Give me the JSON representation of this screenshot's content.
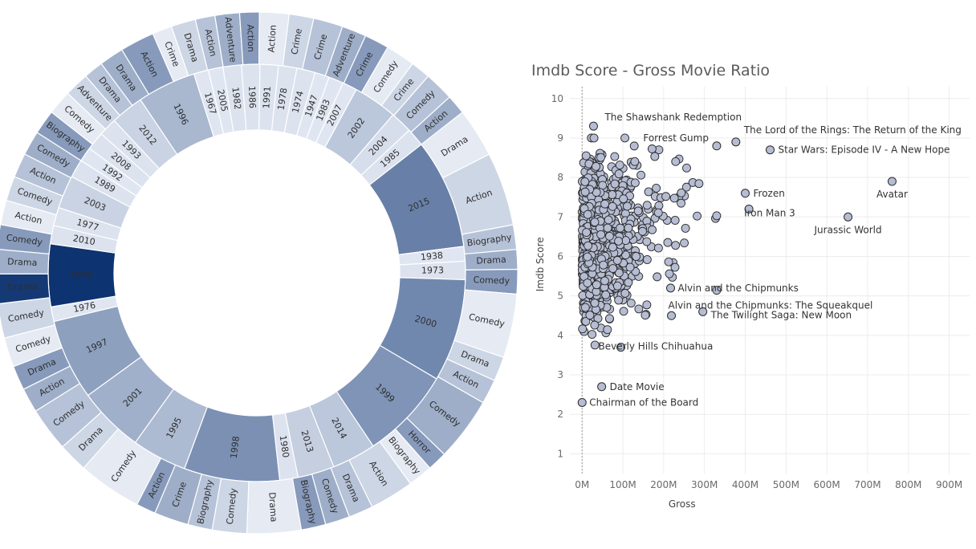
{
  "chart_data": [
    {
      "type": "sunburst",
      "inner_ring": [
        {
          "label": "2015",
          "span": 30
        },
        {
          "label": "1938",
          "span": 4
        },
        {
          "label": "1973",
          "span": 5
        },
        {
          "label": "2000",
          "span": 28
        },
        {
          "label": "1999",
          "span": 25
        },
        {
          "label": "2014",
          "span": 12
        },
        {
          "label": "2013",
          "span": 10
        },
        {
          "label": "1980",
          "span": 5
        },
        {
          "label": "1998",
          "span": 26
        },
        {
          "label": "1995",
          "span": 15
        },
        {
          "label": "2001",
          "span": 18
        },
        {
          "label": "1997",
          "span": 22
        },
        {
          "label": "1976",
          "span": 4
        },
        {
          "label": "1994",
          "span": 17
        },
        {
          "label": "2010",
          "span": 5
        },
        {
          "label": "1977",
          "span": 5
        },
        {
          "label": "2003",
          "span": 9
        },
        {
          "label": "1989",
          "span": 5
        },
        {
          "label": "1992",
          "span": 4
        },
        {
          "label": "2008",
          "span": 5
        },
        {
          "label": "1993",
          "span": 5
        },
        {
          "label": "2012",
          "span": 9
        },
        {
          "label": "1996",
          "span": 16
        },
        {
          "label": "1967",
          "span": 4
        },
        {
          "label": "2005",
          "span": 4
        },
        {
          "label": "1982",
          "span": 5
        },
        {
          "label": "1986",
          "span": 5
        },
        {
          "label": "1991",
          "span": 5
        },
        {
          "label": "1978",
          "span": 5
        },
        {
          "label": "1974",
          "span": 5
        },
        {
          "label": "1947",
          "span": 4
        },
        {
          "label": "1983",
          "span": 4
        },
        {
          "label": "2007",
          "span": 4
        },
        {
          "label": "2002",
          "span": 12
        },
        {
          "label": "2004",
          "span": 6
        },
        {
          "label": "1985",
          "span": 5
        }
      ],
      "outer_ring": [
        {
          "label": "Drama",
          "span": 10
        },
        {
          "label": "Action",
          "span": 15
        },
        {
          "label": "Biography",
          "span": 5
        },
        {
          "label": "Drama",
          "span": 4
        },
        {
          "label": "Comedy",
          "span": 5
        },
        {
          "label": "Comedy",
          "span": 13
        },
        {
          "label": "Drama",
          "span": 5
        },
        {
          "label": "Action",
          "span": 5
        },
        {
          "label": "Comedy",
          "span": 13
        },
        {
          "label": "Horror",
          "span": 4
        },
        {
          "label": "Biography",
          "span": 5
        },
        {
          "label": "Action",
          "span": 9
        },
        {
          "label": "Drama",
          "span": 5
        },
        {
          "label": "Comedy",
          "span": 5
        },
        {
          "label": "Biography",
          "span": 5
        },
        {
          "label": "Drama",
          "span": 11
        },
        {
          "label": "Comedy",
          "span": 7
        },
        {
          "label": "Biography",
          "span": 5
        },
        {
          "label": "Crime",
          "span": 7
        },
        {
          "label": "Action",
          "span": 4
        },
        {
          "label": "Comedy",
          "span": 13
        },
        {
          "label": "Drama",
          "span": 6
        },
        {
          "label": "Comedy",
          "span": 9
        },
        {
          "label": "Action",
          "span": 5
        },
        {
          "label": "Drama",
          "span": 5
        },
        {
          "label": "Comedy",
          "span": 6
        },
        {
          "label": "Comedy",
          "span": 7
        },
        {
          "label": "Drama",
          "span": 6
        },
        {
          "label": "Drama",
          "span": 5
        },
        {
          "label": "Comedy",
          "span": 5
        },
        {
          "label": "Action",
          "span": 5
        },
        {
          "label": "Comedy",
          "span": 5
        },
        {
          "label": "Action",
          "span": 5
        },
        {
          "label": "Comedy",
          "span": 5
        },
        {
          "label": "Biography",
          "span": 5
        },
        {
          "label": "Comedy",
          "span": 5
        },
        {
          "label": "Adventure",
          "span": 5
        },
        {
          "label": "Drama",
          "span": 4
        },
        {
          "label": "Drama",
          "span": 5
        },
        {
          "label": "Action",
          "span": 7
        },
        {
          "label": "Crime",
          "span": 4
        },
        {
          "label": "Drama",
          "span": 5
        },
        {
          "label": "Action",
          "span": 4
        },
        {
          "label": "Adventure",
          "span": 5
        },
        {
          "label": "Action",
          "span": 4
        },
        {
          "label": "Action",
          "span": 6
        },
        {
          "label": "Crime",
          "span": 5
        },
        {
          "label": "Crime",
          "span": 6
        },
        {
          "label": "Adventure",
          "span": 5
        },
        {
          "label": "Crime",
          "span": 5
        },
        {
          "label": "Comedy",
          "span": 6
        },
        {
          "label": "Crime",
          "span": 4
        },
        {
          "label": "Comedy",
          "span": 6
        },
        {
          "label": "Action",
          "span": 4
        }
      ],
      "colors": {
        "light": "#f3f6fc",
        "dark": "#082f6e",
        "stroke": "#ffffff"
      }
    },
    {
      "type": "scatter",
      "title": "Imdb Score - Gross Movie Ratio",
      "xlabel": "Gross",
      "ylabel": "Imdb Score",
      "xlim": [
        -30,
        950
      ],
      "ylim": [
        0.5,
        10.3
      ],
      "x_ticks": [
        "0M",
        "100M",
        "200M",
        "300M",
        "400M",
        "500M",
        "600M",
        "700M",
        "800M",
        "900M"
      ],
      "y_ticks": [
        "1",
        "2",
        "3",
        "4",
        "5",
        "6",
        "7",
        "8",
        "9",
        "10"
      ],
      "grid": true,
      "colors": {
        "point_fill": "#b6bdd3",
        "point_stroke": "#2b2b2b"
      },
      "labeled_points": [
        {
          "name": "The Shawshank Redemption",
          "x": 28,
          "y": 9.3
        },
        {
          "name": "Forrest Gump",
          "x": 330,
          "y": 8.8
        },
        {
          "name": "The Lord of the Rings: The Return of the King",
          "x": 377,
          "y": 8.9
        },
        {
          "name": "Star Wars: Episode IV - A New Hope",
          "x": 461,
          "y": 8.7
        },
        {
          "name": "Frozen",
          "x": 400,
          "y": 7.6
        },
        {
          "name": "Avatar",
          "x": 760,
          "y": 7.9
        },
        {
          "name": "Iron Man 3",
          "x": 409,
          "y": 7.2
        },
        {
          "name": "Jurassic World",
          "x": 652,
          "y": 7.0
        },
        {
          "name": "Alvin and the Chipmunks",
          "x": 217,
          "y": 5.2
        },
        {
          "name": "The Twilight Saga: New Moon",
          "x": 296,
          "y": 4.6
        },
        {
          "name": "Alvin and the Chipmunks: The Squeakquel",
          "x": 219,
          "y": 4.5
        },
        {
          "name": "Beverly Hills Chihuahua",
          "x": 95,
          "y": 3.7
        },
        {
          "name": "Date Movie",
          "x": 48,
          "y": 2.7
        },
        {
          "name": "Chairman of the Board",
          "x": 0,
          "y": 2.3
        }
      ],
      "cloud_seed": 7,
      "cloud_count": 900
    }
  ]
}
